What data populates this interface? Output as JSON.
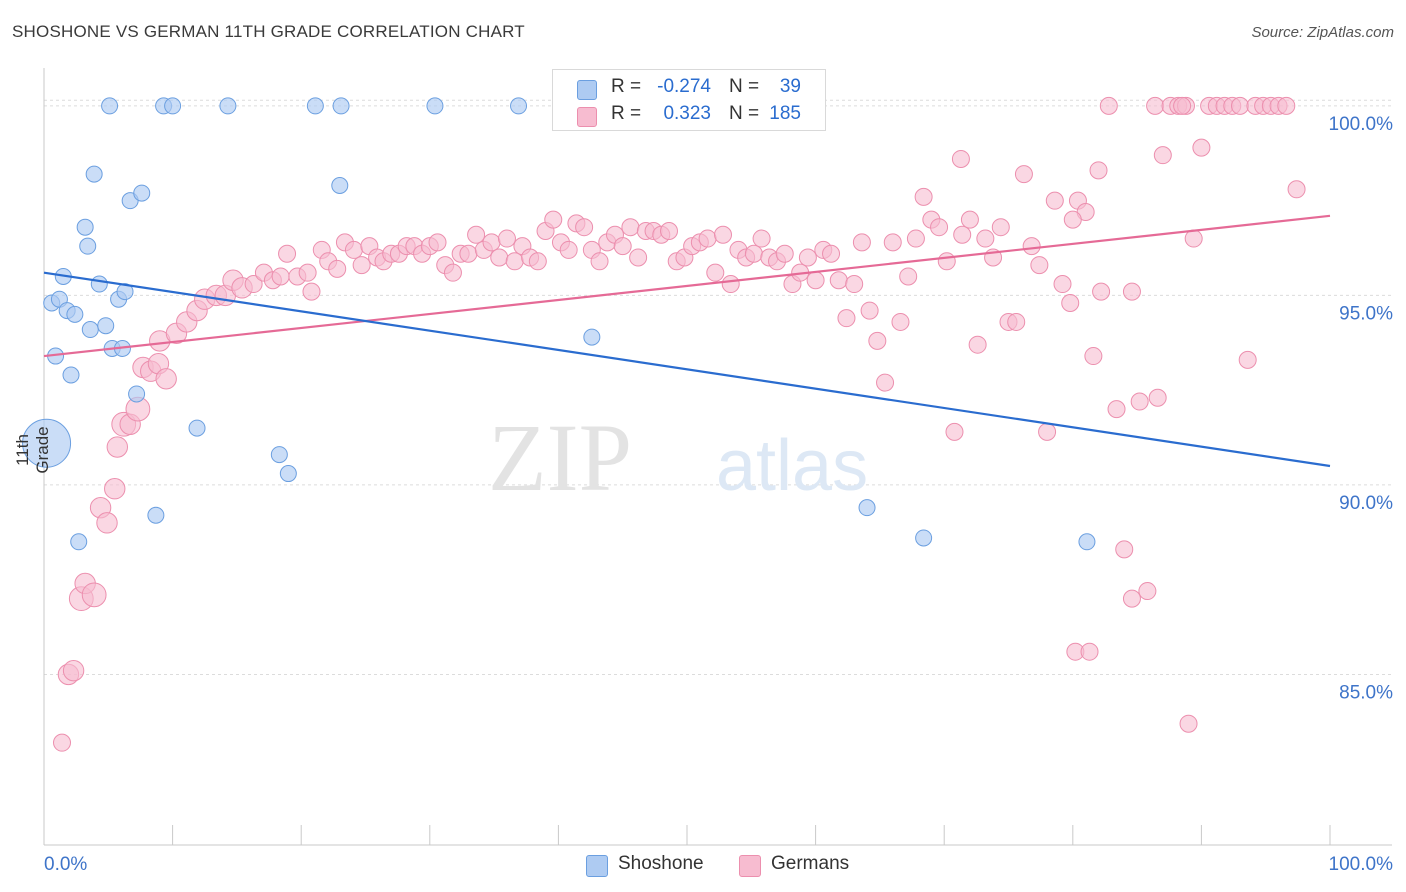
{
  "header": {
    "title": "SHOSHONE VS GERMAN 11TH GRADE CORRELATION CHART",
    "source": "Source: ZipAtlas.com"
  },
  "legend": {
    "rows": [
      {
        "r_label": "R =",
        "r_value": "-0.274",
        "n_label": "N =",
        "n_value": "39"
      },
      {
        "r_label": "R =",
        "r_value": "0.323",
        "n_label": "N =",
        "n_value": "185"
      }
    ]
  },
  "bottom_legend": [
    "Shoshone",
    "Germans"
  ],
  "watermark": {
    "zip": "ZIP",
    "atlas": "atlas"
  },
  "colors": {
    "shoshone_fill": "#aecbf2",
    "shoshone_stroke": "#6b9fe0",
    "shoshone_line": "#2a6ccf",
    "germans_fill": "#f7bcd0",
    "germans_stroke": "#ec8fae",
    "germans_line": "#e56a96",
    "tick_label": "#3e74c9"
  },
  "chart_data": {
    "type": "scatter",
    "title": "SHOSHONE VS GERMAN 11TH GRADE CORRELATION CHART",
    "xlabel": "",
    "ylabel": "11th Grade",
    "xlim": [
      0,
      100
    ],
    "ylim": [
      80.5,
      101.0
    ],
    "x_tick_labels": [
      "0.0%",
      "100.0%"
    ],
    "y_ticks": [
      85.0,
      90.0,
      95.0,
      100.0
    ],
    "y_tick_labels": [
      "85.0%",
      "90.0%",
      "95.0%",
      "100.0%"
    ],
    "grid": true,
    "legend_position": "top-center",
    "series": [
      {
        "name": "Shoshone",
        "r": -0.274,
        "n": 39,
        "trend": [
          [
            0,
            95.6
          ],
          [
            100,
            90.5
          ]
        ],
        "points": [
          [
            0.2,
            91.1,
            3
          ],
          [
            0.6,
            94.8,
            1
          ],
          [
            0.9,
            93.4,
            1
          ],
          [
            1.2,
            94.9,
            1
          ],
          [
            1.5,
            95.5,
            1
          ],
          [
            1.8,
            94.6,
            1
          ],
          [
            2.1,
            92.9,
            1
          ],
          [
            2.4,
            94.5,
            1
          ],
          [
            2.7,
            88.5,
            1
          ],
          [
            3.2,
            96.8,
            1
          ],
          [
            3.4,
            96.3,
            1
          ],
          [
            3.6,
            94.1,
            1
          ],
          [
            3.9,
            98.2,
            1
          ],
          [
            4.3,
            95.3,
            1
          ],
          [
            4.8,
            94.2,
            1
          ],
          [
            5.1,
            100.0,
            1
          ],
          [
            5.3,
            93.6,
            1
          ],
          [
            5.8,
            94.9,
            1
          ],
          [
            6.1,
            93.6,
            1
          ],
          [
            6.3,
            95.1,
            1
          ],
          [
            6.7,
            97.5,
            1
          ],
          [
            7.2,
            92.4,
            1
          ],
          [
            7.6,
            97.7,
            1
          ],
          [
            8.7,
            89.2,
            1
          ],
          [
            9.3,
            100.0,
            1
          ],
          [
            10.0,
            100.0,
            1
          ],
          [
            11.9,
            91.5,
            1
          ],
          [
            14.3,
            100.0,
            1
          ],
          [
            18.3,
            90.8,
            1
          ],
          [
            19.0,
            90.3,
            1
          ],
          [
            21.1,
            100.0,
            1
          ],
          [
            23.0,
            97.9,
            1
          ],
          [
            23.1,
            100.0,
            1
          ],
          [
            30.4,
            100.0,
            1
          ],
          [
            36.9,
            100.0,
            1
          ],
          [
            42.6,
            93.9,
            1
          ],
          [
            64.0,
            89.4,
            1
          ],
          [
            68.4,
            88.6,
            1
          ],
          [
            81.1,
            88.5,
            1
          ]
        ]
      },
      {
        "name": "Germans",
        "r": 0.323,
        "n": 185,
        "trend": [
          [
            0,
            93.4
          ],
          [
            100,
            97.1
          ]
        ],
        "points": [
          [
            1.4,
            83.2,
            1
          ],
          [
            1.9,
            85.0,
            1.2
          ],
          [
            2.3,
            85.1,
            1.2
          ],
          [
            2.9,
            87.0,
            1.4
          ],
          [
            3.2,
            87.4,
            1.2
          ],
          [
            3.9,
            87.1,
            1.4
          ],
          [
            4.4,
            89.4,
            1.2
          ],
          [
            4.9,
            89.0,
            1.2
          ],
          [
            5.5,
            89.9,
            1.2
          ],
          [
            5.7,
            91.0,
            1.2
          ],
          [
            6.2,
            91.6,
            1.4
          ],
          [
            6.7,
            91.6,
            1.2
          ],
          [
            7.3,
            92.0,
            1.4
          ],
          [
            7.7,
            93.1,
            1.2
          ],
          [
            8.3,
            93.0,
            1.2
          ],
          [
            8.9,
            93.2,
            1.2
          ],
          [
            9.5,
            92.8,
            1.2
          ],
          [
            9.0,
            93.8,
            1.2
          ],
          [
            10.3,
            94.0,
            1.2
          ],
          [
            11.1,
            94.3,
            1.2
          ],
          [
            11.9,
            94.6,
            1.2
          ],
          [
            12.5,
            94.9,
            1.2
          ],
          [
            13.4,
            95.0,
            1.2
          ],
          [
            14.1,
            95.0,
            1.2
          ],
          [
            14.7,
            95.4,
            1.2
          ],
          [
            15.4,
            95.2,
            1.2
          ],
          [
            16.3,
            95.3,
            1
          ],
          [
            17.1,
            95.6,
            1
          ],
          [
            17.8,
            95.4,
            1
          ],
          [
            18.4,
            95.5,
            1
          ],
          [
            18.9,
            96.1,
            1
          ],
          [
            19.7,
            95.5,
            1
          ],
          [
            20.5,
            95.6,
            1
          ],
          [
            20.8,
            95.1,
            1
          ],
          [
            21.6,
            96.2,
            1
          ],
          [
            22.1,
            95.9,
            1
          ],
          [
            22.8,
            95.7,
            1
          ],
          [
            23.4,
            96.4,
            1
          ],
          [
            24.1,
            96.2,
            1
          ],
          [
            24.7,
            95.8,
            1
          ],
          [
            25.3,
            96.3,
            1
          ],
          [
            25.9,
            96.0,
            1
          ],
          [
            26.4,
            95.9,
            1
          ],
          [
            27.0,
            96.1,
            1
          ],
          [
            27.6,
            96.1,
            1
          ],
          [
            28.2,
            96.3,
            1
          ],
          [
            28.8,
            96.3,
            1
          ],
          [
            29.4,
            96.1,
            1
          ],
          [
            30.0,
            96.3,
            1
          ],
          [
            30.6,
            96.4,
            1
          ],
          [
            31.2,
            95.8,
            1
          ],
          [
            31.8,
            95.6,
            1
          ],
          [
            32.4,
            96.1,
            1
          ],
          [
            33.0,
            96.1,
            1
          ],
          [
            33.6,
            96.6,
            1
          ],
          [
            34.2,
            96.2,
            1
          ],
          [
            34.8,
            96.4,
            1
          ],
          [
            35.4,
            96.0,
            1
          ],
          [
            36.0,
            96.5,
            1
          ],
          [
            36.6,
            95.9,
            1
          ],
          [
            37.2,
            96.3,
            1
          ],
          [
            37.8,
            96.0,
            1
          ],
          [
            38.4,
            95.9,
            1
          ],
          [
            39.0,
            96.7,
            1
          ],
          [
            39.6,
            97.0,
            1
          ],
          [
            40.2,
            96.4,
            1
          ],
          [
            40.8,
            96.2,
            1
          ],
          [
            41.4,
            96.9,
            1
          ],
          [
            42.0,
            96.8,
            1
          ],
          [
            42.6,
            96.2,
            1
          ],
          [
            43.2,
            95.9,
            1
          ],
          [
            43.8,
            96.4,
            1
          ],
          [
            44.4,
            96.6,
            1
          ],
          [
            45.0,
            96.3,
            1
          ],
          [
            45.6,
            96.8,
            1
          ],
          [
            46.2,
            96.0,
            1
          ],
          [
            46.8,
            96.7,
            1
          ],
          [
            47.4,
            96.7,
            1
          ],
          [
            48.0,
            96.6,
            1
          ],
          [
            48.6,
            96.7,
            1
          ],
          [
            49.2,
            95.9,
            1
          ],
          [
            49.8,
            96.0,
            1
          ],
          [
            50.4,
            96.3,
            1
          ],
          [
            51.0,
            96.4,
            1
          ],
          [
            51.6,
            96.5,
            1
          ],
          [
            52.2,
            95.6,
            1
          ],
          [
            52.8,
            96.6,
            1
          ],
          [
            53.4,
            95.3,
            1
          ],
          [
            54.0,
            96.2,
            1
          ],
          [
            54.6,
            96.0,
            1
          ],
          [
            55.2,
            96.1,
            1
          ],
          [
            55.8,
            96.5,
            1
          ],
          [
            56.4,
            96.0,
            1
          ],
          [
            57.0,
            95.9,
            1
          ],
          [
            57.6,
            96.1,
            1
          ],
          [
            58.2,
            95.3,
            1
          ],
          [
            58.8,
            95.6,
            1
          ],
          [
            59.4,
            96.0,
            1
          ],
          [
            60.0,
            95.4,
            1
          ],
          [
            60.6,
            96.2,
            1
          ],
          [
            61.2,
            96.1,
            1
          ],
          [
            61.8,
            95.4,
            1
          ],
          [
            62.4,
            94.4,
            1
          ],
          [
            63.0,
            95.3,
            1
          ],
          [
            63.6,
            96.4,
            1
          ],
          [
            64.2,
            94.6,
            1
          ],
          [
            64.8,
            93.8,
            1
          ],
          [
            65.4,
            92.7,
            1
          ],
          [
            66.0,
            96.4,
            1
          ],
          [
            66.6,
            94.3,
            1
          ],
          [
            67.2,
            95.5,
            1
          ],
          [
            67.8,
            96.5,
            1
          ],
          [
            68.4,
            97.6,
            1
          ],
          [
            69.0,
            97.0,
            1
          ],
          [
            69.6,
            96.8,
            1
          ],
          [
            70.2,
            95.9,
            1
          ],
          [
            70.8,
            91.4,
            1
          ],
          [
            71.4,
            96.6,
            1
          ],
          [
            72.0,
            97.0,
            1
          ],
          [
            72.6,
            93.7,
            1
          ],
          [
            73.2,
            96.5,
            1
          ],
          [
            73.8,
            96.0,
            1
          ],
          [
            74.4,
            96.8,
            1
          ],
          [
            75.0,
            94.3,
            1
          ],
          [
            75.6,
            94.3,
            1
          ],
          [
            76.2,
            98.2,
            1
          ],
          [
            76.8,
            96.3,
            1
          ],
          [
            77.4,
            95.8,
            1
          ],
          [
            78.0,
            91.4,
            1
          ],
          [
            78.6,
            97.5,
            1
          ],
          [
            79.2,
            95.3,
            1
          ],
          [
            79.8,
            94.8,
            1
          ],
          [
            80.4,
            97.5,
            1
          ],
          [
            81.0,
            97.2,
            1
          ],
          [
            81.6,
            93.4,
            1
          ],
          [
            82.2,
            95.1,
            1
          ],
          [
            82.8,
            100.0,
            1
          ],
          [
            83.4,
            92.0,
            1
          ],
          [
            84.0,
            88.3,
            1
          ],
          [
            84.6,
            95.1,
            1
          ],
          [
            85.2,
            92.2,
            1
          ],
          [
            85.8,
            87.2,
            1
          ],
          [
            86.4,
            100.0,
            1
          ],
          [
            87.0,
            98.7,
            1
          ],
          [
            87.6,
            100.0,
            1
          ],
          [
            88.2,
            100.0,
            1
          ],
          [
            88.8,
            100.0,
            1
          ],
          [
            89.4,
            96.5,
            1
          ],
          [
            90.0,
            98.9,
            1
          ],
          [
            90.6,
            100.0,
            1
          ],
          [
            91.2,
            100.0,
            1
          ],
          [
            91.8,
            100.0,
            1
          ],
          [
            92.4,
            100.0,
            1
          ],
          [
            93.0,
            100.0,
            1
          ],
          [
            93.6,
            93.3,
            1
          ],
          [
            94.2,
            100.0,
            1
          ],
          [
            94.8,
            100.0,
            1
          ],
          [
            95.4,
            100.0,
            1
          ],
          [
            96.0,
            100.0,
            1
          ],
          [
            96.6,
            100.0,
            1
          ],
          [
            97.4,
            97.8,
            1
          ],
          [
            80.2,
            85.6,
            1
          ],
          [
            81.3,
            85.6,
            1
          ],
          [
            89.0,
            83.7,
            1
          ],
          [
            80.0,
            97.0,
            1
          ],
          [
            71.3,
            98.6,
            1
          ],
          [
            84.6,
            87.0,
            1
          ],
          [
            82.0,
            98.3,
            1
          ],
          [
            88.5,
            100.0,
            1
          ],
          [
            86.6,
            92.3,
            1
          ]
        ]
      }
    ]
  }
}
